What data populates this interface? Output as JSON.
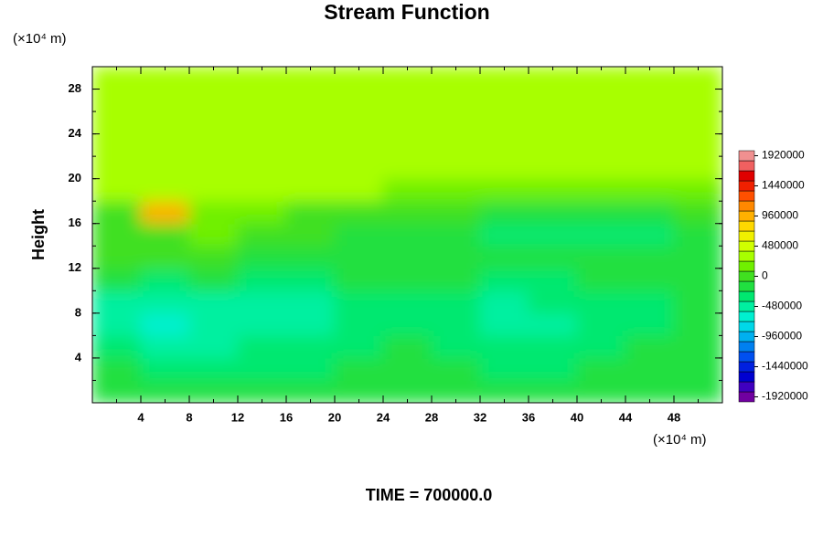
{
  "chart_data": {
    "type": "contour",
    "title": "Stream Function",
    "ylabel": "Height",
    "y_unit": "(×10⁴ m)",
    "x_unit": "(×10⁴ m)",
    "footer": "TIME = 700000.0",
    "xlim": [
      0,
      52
    ],
    "ylim": [
      0,
      30
    ],
    "xticks": [
      4,
      8,
      12,
      16,
      20,
      24,
      28,
      32,
      36,
      40,
      44,
      48
    ],
    "yticks": [
      4,
      8,
      12,
      16,
      20,
      24,
      28
    ],
    "x": [
      2,
      6,
      10,
      14,
      18,
      22,
      26,
      30,
      34,
      38,
      42,
      46,
      50
    ],
    "y": [
      1,
      3,
      5,
      7,
      9,
      11,
      13,
      15,
      17,
      19,
      21,
      23,
      25,
      27,
      29
    ],
    "z": [
      [
        -100000,
        -150000,
        -200000,
        -200000,
        -150000,
        -100000,
        -100000,
        -100000,
        -150000,
        -150000,
        -100000,
        -100000,
        -100000
      ],
      [
        -200000,
        -300000,
        -350000,
        -300000,
        -250000,
        -200000,
        -150000,
        -200000,
        -250000,
        -250000,
        -200000,
        -150000,
        -100000
      ],
      [
        -400000,
        -450000,
        -450000,
        -400000,
        -350000,
        -250000,
        -200000,
        -300000,
        -400000,
        -350000,
        -300000,
        -200000,
        -150000
      ],
      [
        -550000,
        -700000,
        -500000,
        -500000,
        -550000,
        -300000,
        -250000,
        -350000,
        -550000,
        -450000,
        -350000,
        -250000,
        -200000
      ],
      [
        -500000,
        -550000,
        -450000,
        -500000,
        -550000,
        -300000,
        -250000,
        -300000,
        -450000,
        -400000,
        -350000,
        -300000,
        -200000
      ],
      [
        -200000,
        -250000,
        -200000,
        -250000,
        -250000,
        -200000,
        -150000,
        -200000,
        -250000,
        -250000,
        -200000,
        -200000,
        -150000
      ],
      [
        0,
        -50000,
        -50000,
        -100000,
        -100000,
        -100000,
        -100000,
        -150000,
        -150000,
        -200000,
        -200000,
        -150000,
        -100000
      ],
      [
        -50000,
        50000,
        100000,
        0,
        -50000,
        -100000,
        -100000,
        -150000,
        -300000,
        -350000,
        -350000,
        -250000,
        -100000
      ],
      [
        0,
        900000,
        150000,
        200000,
        50000,
        0,
        0,
        -50000,
        -100000,
        -150000,
        -150000,
        -100000,
        -50000
      ],
      [
        250000,
        350000,
        300000,
        300000,
        250000,
        250000,
        200000,
        200000,
        200000,
        150000,
        150000,
        200000,
        200000
      ],
      [
        250000,
        250000,
        250000,
        250000,
        250000,
        250000,
        250000,
        250000,
        250000,
        250000,
        250000,
        250000,
        250000
      ],
      [
        250000,
        250000,
        250000,
        250000,
        250000,
        250000,
        250000,
        250000,
        250000,
        250000,
        250000,
        250000,
        250000
      ],
      [
        250000,
        250000,
        250000,
        250000,
        250000,
        250000,
        250000,
        250000,
        250000,
        250000,
        250000,
        250000,
        250000
      ],
      [
        250000,
        250000,
        250000,
        250000,
        250000,
        250000,
        250000,
        250000,
        250000,
        250000,
        250000,
        250000,
        250000
      ],
      [
        250000,
        250000,
        250000,
        250000,
        250000,
        250000,
        250000,
        250000,
        250000,
        250000,
        250000,
        250000,
        250000
      ]
    ],
    "colorbar": {
      "lim": [
        -2000000,
        2000000
      ],
      "ticks": [
        -1920000,
        -1440000,
        -960000,
        -480000,
        0,
        480000,
        960000,
        1440000,
        1920000
      ],
      "colors": [
        "#7000a0",
        "#4000c0",
        "#0000d0",
        "#0020e0",
        "#0050f0",
        "#0080f0",
        "#00b0f0",
        "#00d8e8",
        "#00f0d0",
        "#00f0a0",
        "#00e870",
        "#20e040",
        "#40e020",
        "#70f000",
        "#a8ff00",
        "#d0ff00",
        "#f0f000",
        "#ffd800",
        "#ffb000",
        "#ff8800",
        "#ff5000",
        "#f02000",
        "#e00000",
        "#f06060",
        "#f09090"
      ]
    }
  }
}
